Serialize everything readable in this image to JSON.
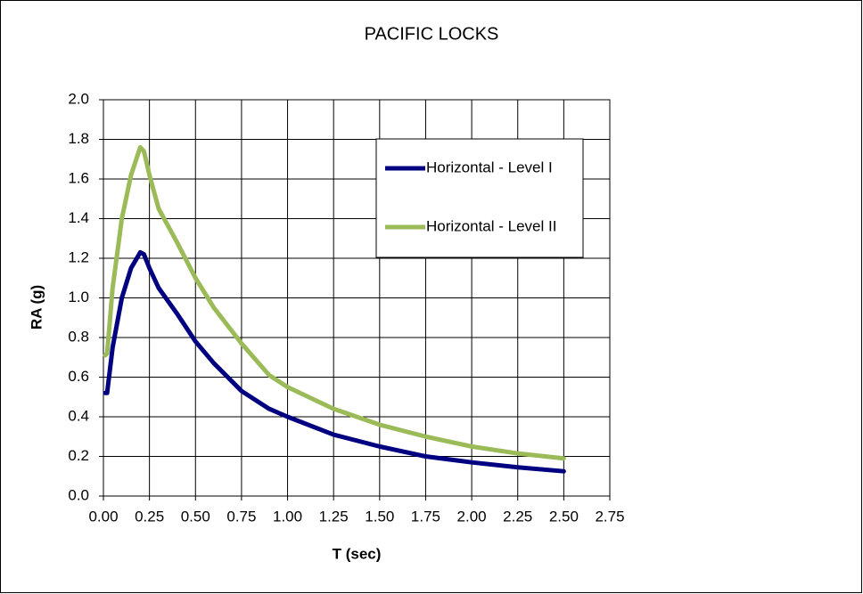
{
  "chart_data": {
    "type": "line",
    "title": "PACIFIC LOCKS",
    "x_label": "T (sec)",
    "y_label": "RA (g)",
    "x": [
      0.01,
      0.02,
      0.05,
      0.1,
      0.15,
      0.2,
      0.22,
      0.25,
      0.3,
      0.4,
      0.5,
      0.6,
      0.75,
      0.9,
      1.0,
      1.25,
      1.5,
      1.75,
      2.0,
      2.25,
      2.5
    ],
    "series": [
      {
        "name": "Horizontal - Level I",
        "color": "#000080",
        "values": [
          0.52,
          0.52,
          0.75,
          1.0,
          1.15,
          1.23,
          1.22,
          1.15,
          1.05,
          0.92,
          0.78,
          0.67,
          0.53,
          0.44,
          0.4,
          0.31,
          0.25,
          0.2,
          0.17,
          0.145,
          0.125
        ]
      },
      {
        "name": "Horizontal - Level II",
        "color": "#9bbb59",
        "values": [
          0.71,
          0.72,
          1.05,
          1.4,
          1.62,
          1.76,
          1.74,
          1.62,
          1.45,
          1.28,
          1.1,
          0.95,
          0.77,
          0.61,
          0.55,
          0.44,
          0.36,
          0.3,
          0.25,
          0.215,
          0.19
        ]
      }
    ],
    "xlim": [
      0,
      2.75
    ],
    "xticks": [
      {
        "value": 0,
        "label": "0.00"
      },
      0.25,
      {
        "value": 0.5,
        "label": "0.50"
      },
      0.75,
      {
        "value": 1,
        "label": "1.00"
      },
      1.25,
      {
        "value": 1.5,
        "label": "1.50"
      },
      1.75,
      {
        "value": 2,
        "label": "2.00"
      },
      2.25,
      {
        "value": 2.5,
        "label": "2.50"
      },
      2.75
    ],
    "ylim": [
      0,
      2
    ],
    "yticks": [
      {
        "value": 0,
        "label": "0.0"
      },
      0.2,
      0.4,
      0.6,
      0.8,
      {
        "value": 1,
        "label": "1.0"
      },
      1.2,
      1.4,
      1.6,
      1.8,
      {
        "value": 2,
        "label": "2.0"
      }
    ],
    "grid": true,
    "legend": "upper-right"
  }
}
